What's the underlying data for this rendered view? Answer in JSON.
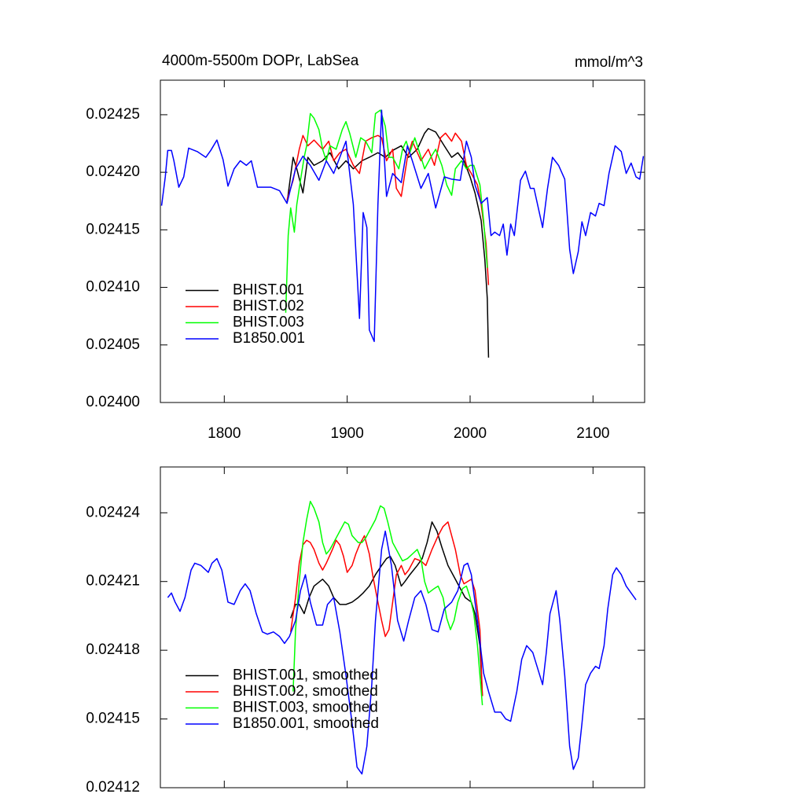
{
  "chart_data": [
    {
      "type": "line",
      "title": "4000m-5500m DOPr, LabSea",
      "units": "mmol/m^3",
      "xlim": [
        1748,
        2142
      ],
      "ylim": [
        0.024,
        0.02428
      ],
      "xticks": [
        1800,
        1900,
        2000,
        2100
      ],
      "yticks": [
        {
          "value": 0.024,
          "label": "0.02400"
        },
        0.02405,
        {
          "value": 0.0241,
          "label": "0.02410"
        },
        0.02415,
        {
          "value": 0.0242,
          "label": "0.02420"
        },
        0.02425
      ],
      "legend": "lower left",
      "series": [
        {
          "name": "BHIST.001",
          "color": "#000000",
          "x": [
            1851,
            1856,
            1859,
            1864,
            1868,
            1873,
            1880,
            1886,
            1893,
            1899,
            1905,
            1912,
            1918,
            1925,
            1931,
            1937,
            1944,
            1950,
            1957,
            1963,
            1966,
            1972,
            1979,
            1985,
            1990,
            1995,
            2000,
            2004,
            2009,
            2012,
            2014,
            2015
          ],
          "values": [
            0.024173,
            0.024213,
            0.024203,
            0.024182,
            0.024213,
            0.024206,
            0.02421,
            0.024217,
            0.024203,
            0.02421,
            0.024203,
            0.02421,
            0.024213,
            0.024217,
            0.024213,
            0.024219,
            0.024223,
            0.024213,
            0.02422,
            0.024234,
            0.024238,
            0.024235,
            0.024223,
            0.024213,
            0.024217,
            0.02421,
            0.024196,
            0.024182,
            0.024158,
            0.024124,
            0.02409,
            0.024039
          ]
        },
        {
          "name": "BHIST.002",
          "color": "#ff0000",
          "x": [
            1851,
            1856,
            1861,
            1864,
            1868,
            1873,
            1880,
            1885,
            1889,
            1894,
            1899,
            1905,
            1910,
            1915,
            1920,
            1925,
            1928,
            1932,
            1937,
            1940,
            1944,
            1949,
            1953,
            1960,
            1966,
            1971,
            1976,
            1980,
            1985,
            1988,
            1993,
            1997,
            2001,
            2006,
            2009,
            2013,
            2015
          ],
          "values": [
            0.024176,
            0.024193,
            0.02422,
            0.024232,
            0.024223,
            0.024228,
            0.02422,
            0.024227,
            0.02421,
            0.024217,
            0.02422,
            0.024206,
            0.024199,
            0.024227,
            0.02423,
            0.024232,
            0.02423,
            0.02421,
            0.02422,
            0.024186,
            0.024179,
            0.024213,
            0.024227,
            0.02421,
            0.02422,
            0.024206,
            0.02423,
            0.024234,
            0.024227,
            0.024234,
            0.024227,
            0.024206,
            0.024199,
            0.024189,
            0.024172,
            0.024138,
            0.024102
          ]
        },
        {
          "name": "BHIST.003",
          "color": "#00ff00",
          "x": [
            1850,
            1852,
            1854,
            1857,
            1859,
            1862,
            1865,
            1867,
            1870,
            1873,
            1877,
            1880,
            1883,
            1886,
            1891,
            1896,
            1899,
            1902,
            1907,
            1911,
            1915,
            1920,
            1923,
            1927,
            1931,
            1934,
            1937,
            1942,
            1945,
            1948,
            1951,
            1955,
            1958,
            1963,
            1968,
            1972,
            1977,
            1981,
            1985,
            1988,
            1993,
            1997,
            2000,
            2003,
            2008,
            2011,
            2014
          ],
          "values": [
            0.024078,
            0.024145,
            0.024169,
            0.024148,
            0.024172,
            0.024193,
            0.024213,
            0.024223,
            0.024251,
            0.024247,
            0.024237,
            0.02422,
            0.02421,
            0.024223,
            0.02422,
            0.024237,
            0.024244,
            0.024234,
            0.024213,
            0.02423,
            0.024227,
            0.024217,
            0.024251,
            0.024254,
            0.02424,
            0.024213,
            0.024213,
            0.024203,
            0.02422,
            0.024227,
            0.024217,
            0.02423,
            0.02422,
            0.024203,
            0.024213,
            0.02422,
            0.024206,
            0.024189,
            0.02418,
            0.024203,
            0.02421,
            0.024203,
            0.024206,
            0.024206,
            0.024189,
            0.024158,
            0.024117
          ]
        },
        {
          "name": "B1850.001",
          "color": "#0000ff",
          "x": [
            1749,
            1752,
            1754,
            1757,
            1759,
            1763,
            1767,
            1771,
            1778,
            1785,
            1789,
            1794,
            1799,
            1803,
            1808,
            1813,
            1818,
            1822,
            1827,
            1832,
            1838,
            1845,
            1851,
            1858,
            1864,
            1870,
            1877,
            1883,
            1889,
            1894,
            1899,
            1905,
            1910,
            1913,
            1916,
            1918,
            1922,
            1925,
            1928,
            1932,
            1937,
            1944,
            1949,
            1953,
            1960,
            1966,
            1972,
            1979,
            1985,
            1992,
            1997,
            2001,
            2004,
            2009,
            2014,
            2017,
            2020,
            2024,
            2027,
            2030,
            2033,
            2036,
            2041,
            2045,
            2049,
            2052,
            2059,
            2063,
            2067,
            2072,
            2077,
            2081,
            2084,
            2088,
            2091,
            2094,
            2098,
            2102,
            2105,
            2109,
            2113,
            2118,
            2123,
            2127,
            2131,
            2135,
            2138,
            2141
          ],
          "values": [
            0.024171,
            0.024196,
            0.024219,
            0.024219,
            0.02421,
            0.024187,
            0.024196,
            0.024221,
            0.024218,
            0.024213,
            0.024219,
            0.024228,
            0.024211,
            0.024188,
            0.024203,
            0.02421,
            0.024206,
            0.02421,
            0.024187,
            0.024187,
            0.024187,
            0.024184,
            0.024173,
            0.024203,
            0.024214,
            0.024206,
            0.024193,
            0.02421,
            0.024199,
            0.024213,
            0.024227,
            0.024172,
            0.024073,
            0.024165,
            0.024152,
            0.024063,
            0.024053,
            0.024172,
            0.024254,
            0.024179,
            0.024199,
            0.024191,
            0.024223,
            0.02421,
            0.024186,
            0.024199,
            0.024169,
            0.024196,
            0.024194,
            0.024193,
            0.024227,
            0.024213,
            0.024189,
            0.024173,
            0.024178,
            0.024145,
            0.024148,
            0.024145,
            0.024155,
            0.024128,
            0.024155,
            0.024145,
            0.024193,
            0.024201,
            0.024186,
            0.024186,
            0.024152,
            0.024186,
            0.024213,
            0.024206,
            0.024194,
            0.024133,
            0.024112,
            0.024131,
            0.024157,
            0.024145,
            0.024165,
            0.024162,
            0.024173,
            0.024171,
            0.024199,
            0.024223,
            0.024218,
            0.024199,
            0.024208,
            0.024196,
            0.024194,
            0.024214
          ]
        }
      ]
    },
    {
      "type": "line",
      "xlim": [
        1748,
        2142
      ],
      "ylim": [
        0.02412,
        0.02426
      ],
      "xticks": [
        1800,
        1900,
        2000,
        2100
      ],
      "xticklabels": false,
      "yticks": [
        0.02412,
        0.02415,
        0.02418,
        0.02421,
        0.02424
      ],
      "legend": "lower left",
      "series": [
        {
          "name": "BHIST.001, smoothed",
          "color": "#000000",
          "x": [
            1854,
            1858,
            1861,
            1865,
            1869,
            1873,
            1880,
            1885,
            1889,
            1894,
            1899,
            1904,
            1909,
            1913,
            1918,
            1923,
            1928,
            1932,
            1935,
            1939,
            1944,
            1947,
            1951,
            1957,
            1961,
            1965,
            1969,
            1973,
            1977,
            1982,
            1987,
            1992,
            1996,
            2001,
            2004,
            2008,
            2010
          ],
          "values": [
            0.024194,
            0.0242,
            0.0242,
            0.024196,
            0.024203,
            0.024208,
            0.024211,
            0.024208,
            0.024203,
            0.0242,
            0.0242,
            0.024201,
            0.024203,
            0.024205,
            0.024208,
            0.024213,
            0.024217,
            0.02422,
            0.024221,
            0.024217,
            0.024208,
            0.02421,
            0.024213,
            0.024217,
            0.02422,
            0.024227,
            0.024236,
            0.024232,
            0.024225,
            0.024217,
            0.024212,
            0.024207,
            0.024203,
            0.024201,
            0.024196,
            0.024182,
            0.02416
          ]
        },
        {
          "name": "BHIST.002, smoothed",
          "color": "#ff0000",
          "x": [
            1854,
            1858,
            1861,
            1864,
            1867,
            1870,
            1873,
            1877,
            1880,
            1883,
            1888,
            1891,
            1894,
            1897,
            1900,
            1904,
            1907,
            1910,
            1914,
            1918,
            1921,
            1925,
            1928,
            1931,
            1934,
            1937,
            1940,
            1944,
            1947,
            1950,
            1955,
            1960,
            1964,
            1969,
            1974,
            1978,
            1982,
            1985,
            1988,
            1992,
            1995,
            1998,
            2001,
            2004,
            2008,
            2010
          ],
          "values": [
            0.024188,
            0.024203,
            0.024218,
            0.024226,
            0.024228,
            0.024227,
            0.024224,
            0.024218,
            0.024215,
            0.024218,
            0.024224,
            0.024228,
            0.024226,
            0.024221,
            0.024214,
            0.024217,
            0.024222,
            0.024226,
            0.02423,
            0.024222,
            0.024212,
            0.024201,
            0.024193,
            0.024186,
            0.024189,
            0.024201,
            0.024213,
            0.024217,
            0.024213,
            0.024215,
            0.02422,
            0.024219,
            0.024217,
            0.024224,
            0.02423,
            0.024234,
            0.024236,
            0.02423,
            0.024224,
            0.024213,
            0.024209,
            0.02421,
            0.024211,
            0.024206,
            0.024189,
            0.02416
          ]
        },
        {
          "name": "BHIST.003, smoothed",
          "color": "#00ff00",
          "x": [
            1856,
            1858,
            1861,
            1864,
            1867,
            1870,
            1873,
            1877,
            1880,
            1883,
            1886,
            1889,
            1894,
            1898,
            1901,
            1904,
            1909,
            1912,
            1915,
            1920,
            1923,
            1927,
            1930,
            1933,
            1937,
            1942,
            1945,
            1949,
            1953,
            1957,
            1960,
            1963,
            1966,
            1971,
            1974,
            1978,
            1981,
            1984,
            1987,
            1990,
            1994,
            1997,
            2000,
            2003,
            2006,
            2010
          ],
          "values": [
            0.024162,
            0.024189,
            0.02421,
            0.024227,
            0.024237,
            0.024245,
            0.024242,
            0.024236,
            0.024227,
            0.024222,
            0.024224,
            0.024227,
            0.024232,
            0.024236,
            0.024235,
            0.02423,
            0.024227,
            0.024227,
            0.024229,
            0.024234,
            0.024237,
            0.024243,
            0.024242,
            0.024236,
            0.024227,
            0.024222,
            0.024219,
            0.02422,
            0.024222,
            0.024224,
            0.02422,
            0.02421,
            0.024205,
            0.024207,
            0.024208,
            0.024203,
            0.024194,
            0.024189,
            0.024193,
            0.024201,
            0.024207,
            0.024208,
            0.024203,
            0.024196,
            0.024182,
            0.024156
          ]
        },
        {
          "name": "B1850.001, smoothed",
          "color": "#0000ff",
          "x": [
            1754,
            1757,
            1760,
            1764,
            1768,
            1773,
            1776,
            1781,
            1787,
            1790,
            1794,
            1798,
            1803,
            1808,
            1813,
            1817,
            1821,
            1826,
            1831,
            1835,
            1840,
            1845,
            1849,
            1853,
            1858,
            1862,
            1866,
            1870,
            1875,
            1880,
            1884,
            1889,
            1894,
            1899,
            1904,
            1908,
            1912,
            1916,
            1920,
            1923,
            1928,
            1931,
            1936,
            1941,
            1946,
            1950,
            1955,
            1960,
            1964,
            1969,
            1974,
            1979,
            1985,
            1990,
            1995,
            1998,
            2001,
            2006,
            2011,
            2015,
            2020,
            2025,
            2029,
            2033,
            2038,
            2042,
            2046,
            2051,
            2055,
            2059,
            2062,
            2065,
            2070,
            2073,
            2077,
            2081,
            2084,
            2088,
            2091,
            2094,
            2098,
            2102,
            2105,
            2109,
            2112,
            2116,
            2119,
            2123,
            2127,
            2131,
            2135
          ],
          "values": [
            0.024203,
            0.024205,
            0.024201,
            0.024197,
            0.024203,
            0.024215,
            0.024218,
            0.024217,
            0.024214,
            0.024218,
            0.02422,
            0.024215,
            0.024201,
            0.0242,
            0.024206,
            0.024209,
            0.024206,
            0.024196,
            0.024188,
            0.024187,
            0.024188,
            0.024186,
            0.024183,
            0.024186,
            0.024193,
            0.024206,
            0.024213,
            0.024201,
            0.024191,
            0.024191,
            0.0242,
            0.024203,
            0.024188,
            0.024169,
            0.024148,
            0.024129,
            0.024126,
            0.024138,
            0.024165,
            0.024193,
            0.024224,
            0.024232,
            0.024217,
            0.024193,
            0.024184,
            0.024193,
            0.024203,
            0.024206,
            0.0242,
            0.024189,
            0.024188,
            0.024198,
            0.024201,
            0.024206,
            0.024217,
            0.024218,
            0.024213,
            0.024193,
            0.02417,
            0.024162,
            0.024153,
            0.024153,
            0.02415,
            0.024149,
            0.024162,
            0.024176,
            0.024182,
            0.024179,
            0.024172,
            0.024165,
            0.024179,
            0.024196,
            0.024206,
            0.024193,
            0.024169,
            0.024138,
            0.024128,
            0.024133,
            0.024148,
            0.024165,
            0.02417,
            0.024173,
            0.024172,
            0.024182,
            0.024198,
            0.024213,
            0.024216,
            0.024213,
            0.024208,
            0.024205,
            0.024202
          ]
        }
      ]
    }
  ]
}
